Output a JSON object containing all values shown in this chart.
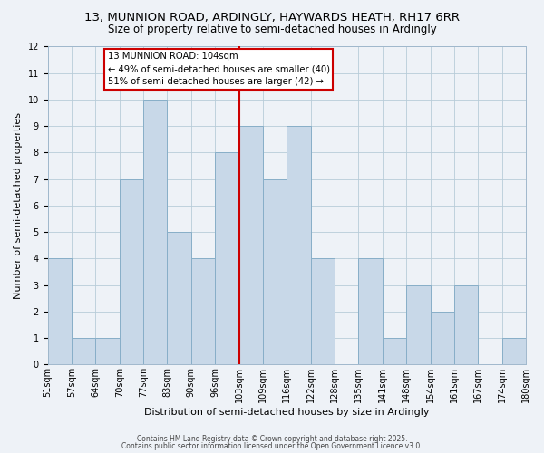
{
  "title1": "13, MUNNION ROAD, ARDINGLY, HAYWARDS HEATH, RH17 6RR",
  "title2": "Size of property relative to semi-detached houses in Ardingly",
  "xlabel": "Distribution of semi-detached houses by size in Ardingly",
  "ylabel": "Number of semi-detached properties",
  "bin_labels": [
    "51sqm",
    "57sqm",
    "64sqm",
    "70sqm",
    "77sqm",
    "83sqm",
    "90sqm",
    "96sqm",
    "103sqm",
    "109sqm",
    "116sqm",
    "122sqm",
    "128sqm",
    "135sqm",
    "141sqm",
    "148sqm",
    "154sqm",
    "161sqm",
    "167sqm",
    "174sqm",
    "180sqm"
  ],
  "bar_heights": [
    4,
    1,
    1,
    7,
    10,
    5,
    4,
    8,
    9,
    7,
    9,
    4,
    0,
    4,
    1,
    3,
    2,
    3,
    0,
    1
  ],
  "bar_color": "#c8d8e8",
  "bar_edge_color": "#88aec8",
  "vline_color": "#cc0000",
  "vline_x_index": 8,
  "annotation_title": "13 MUNNION ROAD: 104sqm",
  "annotation_line1": "← 49% of semi-detached houses are smaller (40)",
  "annotation_line2": "51% of semi-detached houses are larger (42) →",
  "annotation_box_color": "#ffffff",
  "annotation_box_edge": "#cc0000",
  "ylim": [
    0,
    12
  ],
  "yticks": [
    0,
    1,
    2,
    3,
    4,
    5,
    6,
    7,
    8,
    9,
    10,
    11,
    12
  ],
  "background_color": "#eef2f7",
  "footer1": "Contains HM Land Registry data © Crown copyright and database right 2025.",
  "footer2": "Contains public sector information licensed under the Open Government Licence v3.0.",
  "title1_fontsize": 9.5,
  "title2_fontsize": 8.5,
  "xlabel_fontsize": 8,
  "ylabel_fontsize": 8,
  "tick_fontsize": 7,
  "footer_fontsize": 5.5
}
